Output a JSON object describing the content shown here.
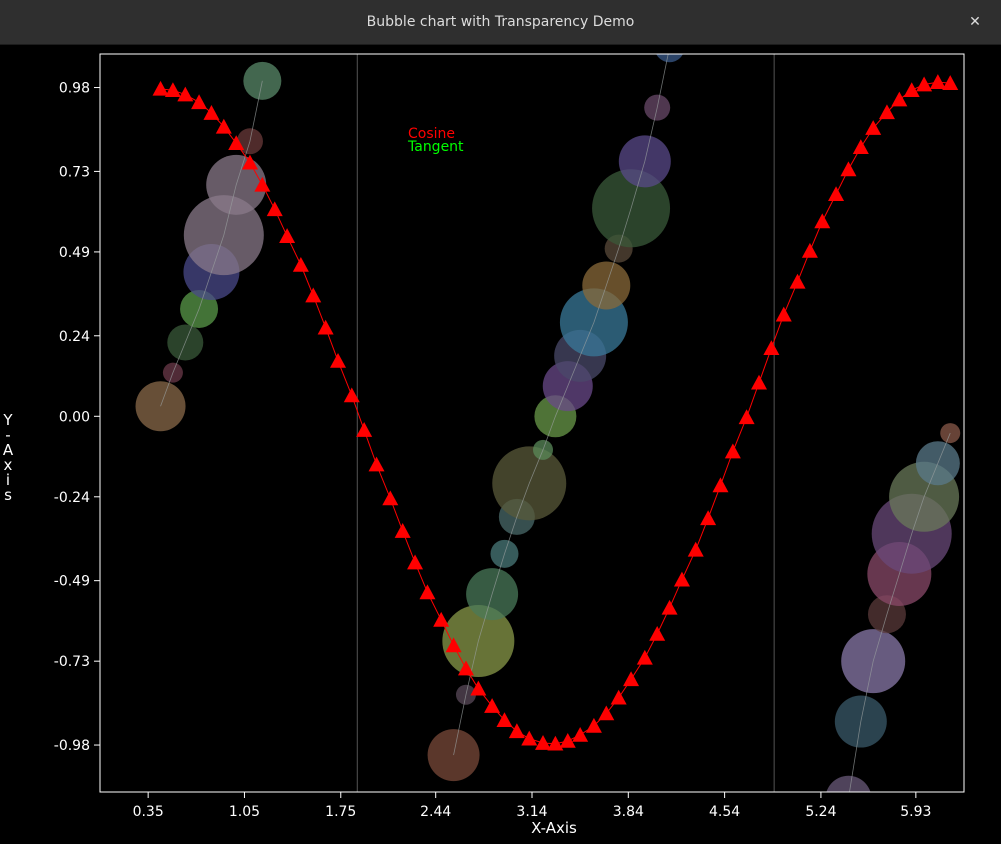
{
  "window": {
    "title": "Bubble chart with Transparency Demo",
    "close_glyph": "✕",
    "close_icon": "close-icon"
  },
  "chart_data": {
    "type": "scatter",
    "xlabel": "X-Axis",
    "ylabel": "Y-Axis",
    "xlim": [
      0.0,
      6.28
    ],
    "ylim": [
      -1.12,
      1.08
    ],
    "x_ticks": [
      "0.35",
      "1.05",
      "1.75",
      "2.44",
      "3.14",
      "3.84",
      "4.54",
      "5.24",
      "5.93"
    ],
    "y_ticks": [
      "0.98",
      "0.73",
      "0.49",
      "0.24",
      "0.00",
      "-0.24",
      "-0.49",
      "-0.73",
      "-0.98"
    ],
    "vertical_markers": [
      1.87,
      4.9
    ],
    "legend": {
      "placement": "top-center",
      "entries": [
        {
          "label": "Cosine",
          "color": "#ff0000"
        },
        {
          "label": "Tangent",
          "color": "#00ff00"
        }
      ]
    },
    "series": [
      {
        "name": "Cosine",
        "color": "#ff0000",
        "marker": "triangle",
        "x": [
          0.44,
          0.53,
          0.62,
          0.72,
          0.81,
          0.9,
          0.99,
          1.09,
          1.18,
          1.27,
          1.36,
          1.46,
          1.55,
          1.64,
          1.73,
          1.83,
          1.92,
          2.01,
          2.11,
          2.2,
          2.29,
          2.38,
          2.48,
          2.57,
          2.66,
          2.75,
          2.85,
          2.94,
          3.03,
          3.12,
          3.22,
          3.31,
          3.4,
          3.49,
          3.59,
          3.68,
          3.77,
          3.86,
          3.96,
          4.05,
          4.14,
          4.23,
          4.33,
          4.42,
          4.51,
          4.6,
          4.7,
          4.79,
          4.88,
          4.97,
          5.07,
          5.16,
          5.25,
          5.35,
          5.44,
          5.53,
          5.62,
          5.72,
          5.81,
          5.9,
          5.99,
          6.09,
          6.18
        ],
        "y": [
          0.976,
          0.972,
          0.959,
          0.936,
          0.904,
          0.863,
          0.814,
          0.756,
          0.69,
          0.617,
          0.537,
          0.451,
          0.36,
          0.264,
          0.165,
          0.062,
          -0.041,
          -0.144,
          -0.245,
          -0.342,
          -0.436,
          -0.525,
          -0.607,
          -0.683,
          -0.752,
          -0.812,
          -0.864,
          -0.906,
          -0.939,
          -0.961,
          -0.974,
          -0.976,
          -0.968,
          -0.95,
          -0.923,
          -0.886,
          -0.839,
          -0.784,
          -0.72,
          -0.649,
          -0.571,
          -0.487,
          -0.398,
          -0.304,
          -0.206,
          -0.105,
          -0.003,
          0.1,
          0.203,
          0.303,
          0.401,
          0.493,
          0.581,
          0.662,
          0.736,
          0.802,
          0.859,
          0.906,
          0.944,
          0.972,
          0.989,
          0.996,
          0.993
        ]
      },
      {
        "name": "Tangent",
        "marker": "bubble",
        "points": [
          {
            "x": 0.44,
            "y": 0.03,
            "r": 25,
            "color": "#8a6a4a"
          },
          {
            "x": 0.53,
            "y": 0.13,
            "r": 10,
            "color": "#6b3a4a"
          },
          {
            "x": 0.62,
            "y": 0.22,
            "r": 18,
            "color": "#3a5a3a"
          },
          {
            "x": 0.72,
            "y": 0.32,
            "r": 19,
            "color": "#5a9a4a"
          },
          {
            "x": 0.81,
            "y": 0.43,
            "r": 28,
            "color": "#4a4a8a"
          },
          {
            "x": 0.9,
            "y": 0.54,
            "r": 40,
            "color": "#8a7a8a"
          },
          {
            "x": 0.99,
            "y": 0.69,
            "r": 30,
            "color": "#8a7a8a"
          },
          {
            "x": 1.09,
            "y": 0.82,
            "r": 13,
            "color": "#6a3a3a"
          },
          {
            "x": 1.18,
            "y": 1.0,
            "r": 19,
            "color": "#5a8a6a"
          },
          {
            "x": 2.57,
            "y": -1.01,
            "r": 26,
            "color": "#7a4a3a"
          },
          {
            "x": 2.66,
            "y": -0.83,
            "r": 10,
            "color": "#5a4a5a"
          },
          {
            "x": 2.75,
            "y": -0.67,
            "r": 36,
            "color": "#8a9a4a"
          },
          {
            "x": 2.85,
            "y": -0.53,
            "r": 26,
            "color": "#4a7a5a"
          },
          {
            "x": 2.94,
            "y": -0.41,
            "r": 14,
            "color": "#4a7a7a"
          },
          {
            "x": 3.03,
            "y": -0.3,
            "r": 18,
            "color": "#4a6a6a"
          },
          {
            "x": 3.12,
            "y": -0.2,
            "r": 37,
            "color": "#5a5a3a"
          },
          {
            "x": 3.22,
            "y": -0.1,
            "r": 10,
            "color": "#5a8a5a"
          },
          {
            "x": 3.31,
            "y": 0.0,
            "r": 21,
            "color": "#6a9a4a"
          },
          {
            "x": 3.4,
            "y": 0.09,
            "r": 25,
            "color": "#6a4a8a"
          },
          {
            "x": 3.49,
            "y": 0.18,
            "r": 26,
            "color": "#4a4a6a"
          },
          {
            "x": 3.59,
            "y": 0.28,
            "r": 34,
            "color": "#3a7a9a"
          },
          {
            "x": 3.68,
            "y": 0.39,
            "r": 24,
            "color": "#8a6a3a"
          },
          {
            "x": 3.77,
            "y": 0.5,
            "r": 14,
            "color": "#5a4a3a"
          },
          {
            "x": 3.86,
            "y": 0.62,
            "r": 39,
            "color": "#3a5a3a"
          },
          {
            "x": 3.96,
            "y": 0.76,
            "r": 26,
            "color": "#5a4a8a"
          },
          {
            "x": 4.05,
            "y": 0.92,
            "r": 13,
            "color": "#6a4a6a"
          },
          {
            "x": 4.14,
            "y": 1.1,
            "r": 15,
            "color": "#3a5a8a"
          },
          {
            "x": 5.44,
            "y": -1.14,
            "r": 23,
            "color": "#6a5a7a"
          },
          {
            "x": 5.53,
            "y": -0.91,
            "r": 26,
            "color": "#3a5a6a"
          },
          {
            "x": 5.62,
            "y": -0.73,
            "r": 32,
            "color": "#8a7aaa"
          },
          {
            "x": 5.72,
            "y": -0.59,
            "r": 19,
            "color": "#5a3a3a"
          },
          {
            "x": 5.81,
            "y": -0.47,
            "r": 32,
            "color": "#8a4a6a"
          },
          {
            "x": 5.9,
            "y": -0.35,
            "r": 40,
            "color": "#6a4a7a"
          },
          {
            "x": 5.99,
            "y": -0.24,
            "r": 35,
            "color": "#6a7a5a"
          },
          {
            "x": 6.09,
            "y": -0.14,
            "r": 22,
            "color": "#5a7a8a"
          },
          {
            "x": 6.18,
            "y": -0.05,
            "r": 10,
            "color": "#8a5a4a"
          }
        ]
      }
    ]
  }
}
